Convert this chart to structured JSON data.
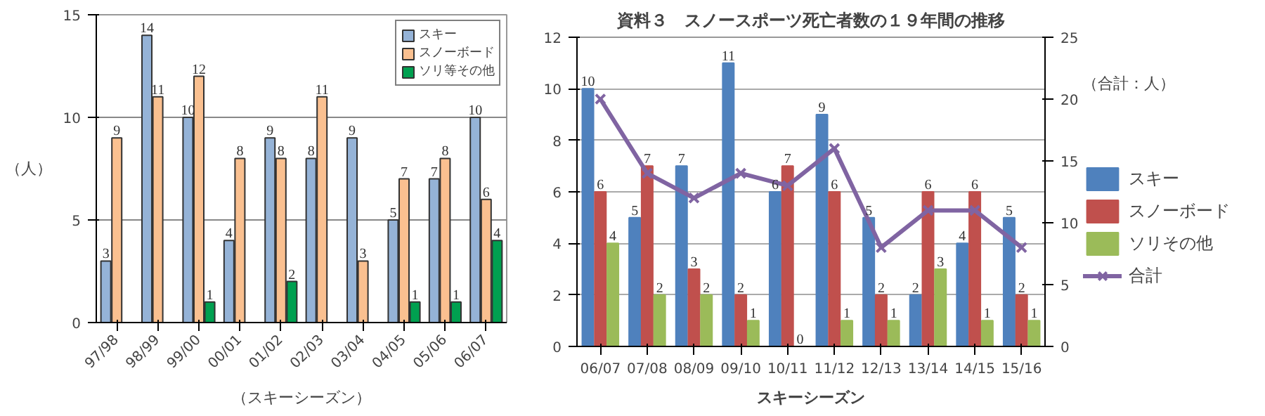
{
  "chart_data": [
    {
      "type": "bar",
      "ylabel": "（人）",
      "xlabel": "（スキーシーズン）",
      "categories": [
        "97/98",
        "98/99",
        "99/00",
        "00/01",
        "01/02",
        "02/03",
        "03/04",
        "04/05",
        "05/06",
        "06/07"
      ],
      "series": [
        {
          "name": "スキー",
          "color": "#95b3d7",
          "values": [
            3,
            14,
            10,
            4,
            9,
            8,
            9,
            5,
            7,
            10
          ]
        },
        {
          "name": "スノーボード",
          "color": "#fac090",
          "values": [
            9,
            11,
            12,
            8,
            8,
            11,
            3,
            7,
            8,
            6
          ]
        },
        {
          "name": "ソリ等その他",
          "color": "#00a050",
          "values": [
            null,
            null,
            1,
            null,
            2,
            null,
            null,
            1,
            1,
            4
          ]
        }
      ],
      "ylim": [
        0,
        15
      ],
      "yticks": [
        0,
        5,
        10,
        15
      ],
      "grid": "y",
      "legend": "top right",
      "data_labels": true
    },
    {
      "type": "bar",
      "title": "資料３　スノースポーツ死亡者数の１９年間の推移",
      "xlabel": "スキーシーズン",
      "y2label": "（合計：人）",
      "categories": [
        "06/07",
        "07/08",
        "08/09",
        "09/10",
        "10/11",
        "11/12",
        "12/13",
        "13/14",
        "14/15",
        "15/16"
      ],
      "series": [
        {
          "name": "スキー",
          "color": "#4f81bd",
          "values": [
            10,
            5,
            7,
            11,
            6,
            9,
            5,
            2,
            4,
            5
          ],
          "data_labels": true
        },
        {
          "name": "スノーボード",
          "color": "#c0504d",
          "values": [
            6,
            7,
            3,
            2,
            7,
            6,
            2,
            6,
            6,
            2
          ],
          "data_labels": true
        },
        {
          "name": "ソリその他",
          "color": "#9bbb59",
          "values": [
            4,
            2,
            2,
            1,
            0,
            1,
            1,
            3,
            1,
            1
          ],
          "data_labels": true
        },
        {
          "name": "合計",
          "type": "line",
          "axis": "y2",
          "color": "#8064a2",
          "values": [
            20,
            14,
            12,
            14,
            13,
            16,
            8,
            11,
            11,
            8
          ]
        }
      ],
      "ylim": [
        0,
        12
      ],
      "yticks": [
        0,
        2,
        4,
        6,
        8,
        10,
        12
      ],
      "y2lim": [
        0,
        25
      ],
      "y2ticks": [
        0,
        5,
        10,
        15,
        20,
        25
      ],
      "grid": "y",
      "legend": "right",
      "marker": "cross",
      "line_style": "solid"
    }
  ]
}
